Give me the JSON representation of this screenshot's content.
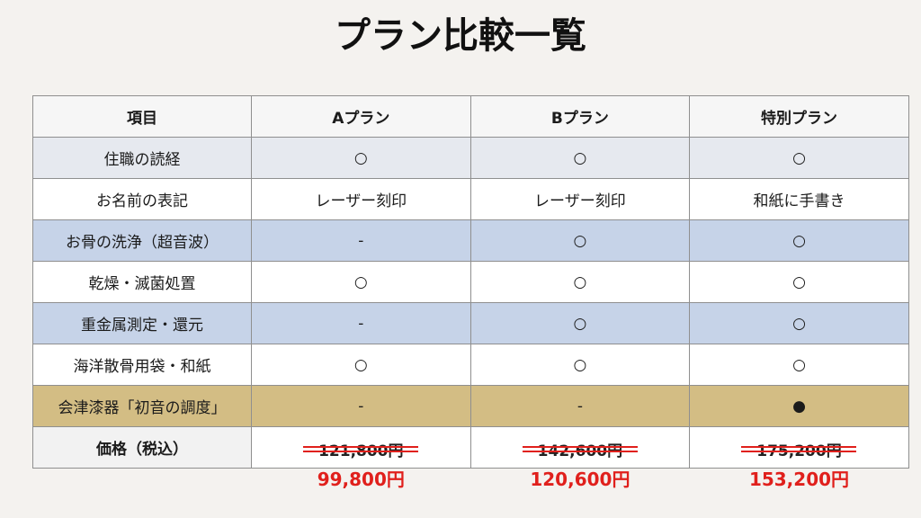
{
  "title": "プラン比較一覧",
  "table": {
    "headers": [
      "項目",
      "Aプラン",
      "Bプラン",
      "特別プラン"
    ],
    "rows": [
      {
        "item": "住職の読経",
        "a": "○",
        "b": "○",
        "special": "○"
      },
      {
        "item": "お名前の表記",
        "a": "レーザー刻印",
        "b": "レーザー刻印",
        "special": "和紙に手書き"
      },
      {
        "item": "お骨の洗浄（超音波）",
        "a": "-",
        "b": "○",
        "special": "○"
      },
      {
        "item": "乾燥・滅菌処置",
        "a": "○",
        "b": "○",
        "special": "○"
      },
      {
        "item": "重金属測定・還元",
        "a": "-",
        "b": "○",
        "special": "○"
      },
      {
        "item": "海洋散骨用袋・和紙",
        "a": "○",
        "b": "○",
        "special": "○"
      },
      {
        "item": "会津漆器「初音の調度」",
        "a": "-",
        "b": "-",
        "special": "●"
      }
    ],
    "price": {
      "label": "価格（税込）",
      "a": {
        "old": "121,800円",
        "new": "99,800円"
      },
      "b": {
        "old": "142,600円",
        "new": "120,600円"
      },
      "special": {
        "old": "175,200円",
        "new": "153,200円"
      }
    }
  },
  "colors": {
    "row_grey": "#e6e9ef",
    "row_blue": "#c6d3e8",
    "row_gold": "#d3bd84",
    "price_red": "#e0201c"
  }
}
